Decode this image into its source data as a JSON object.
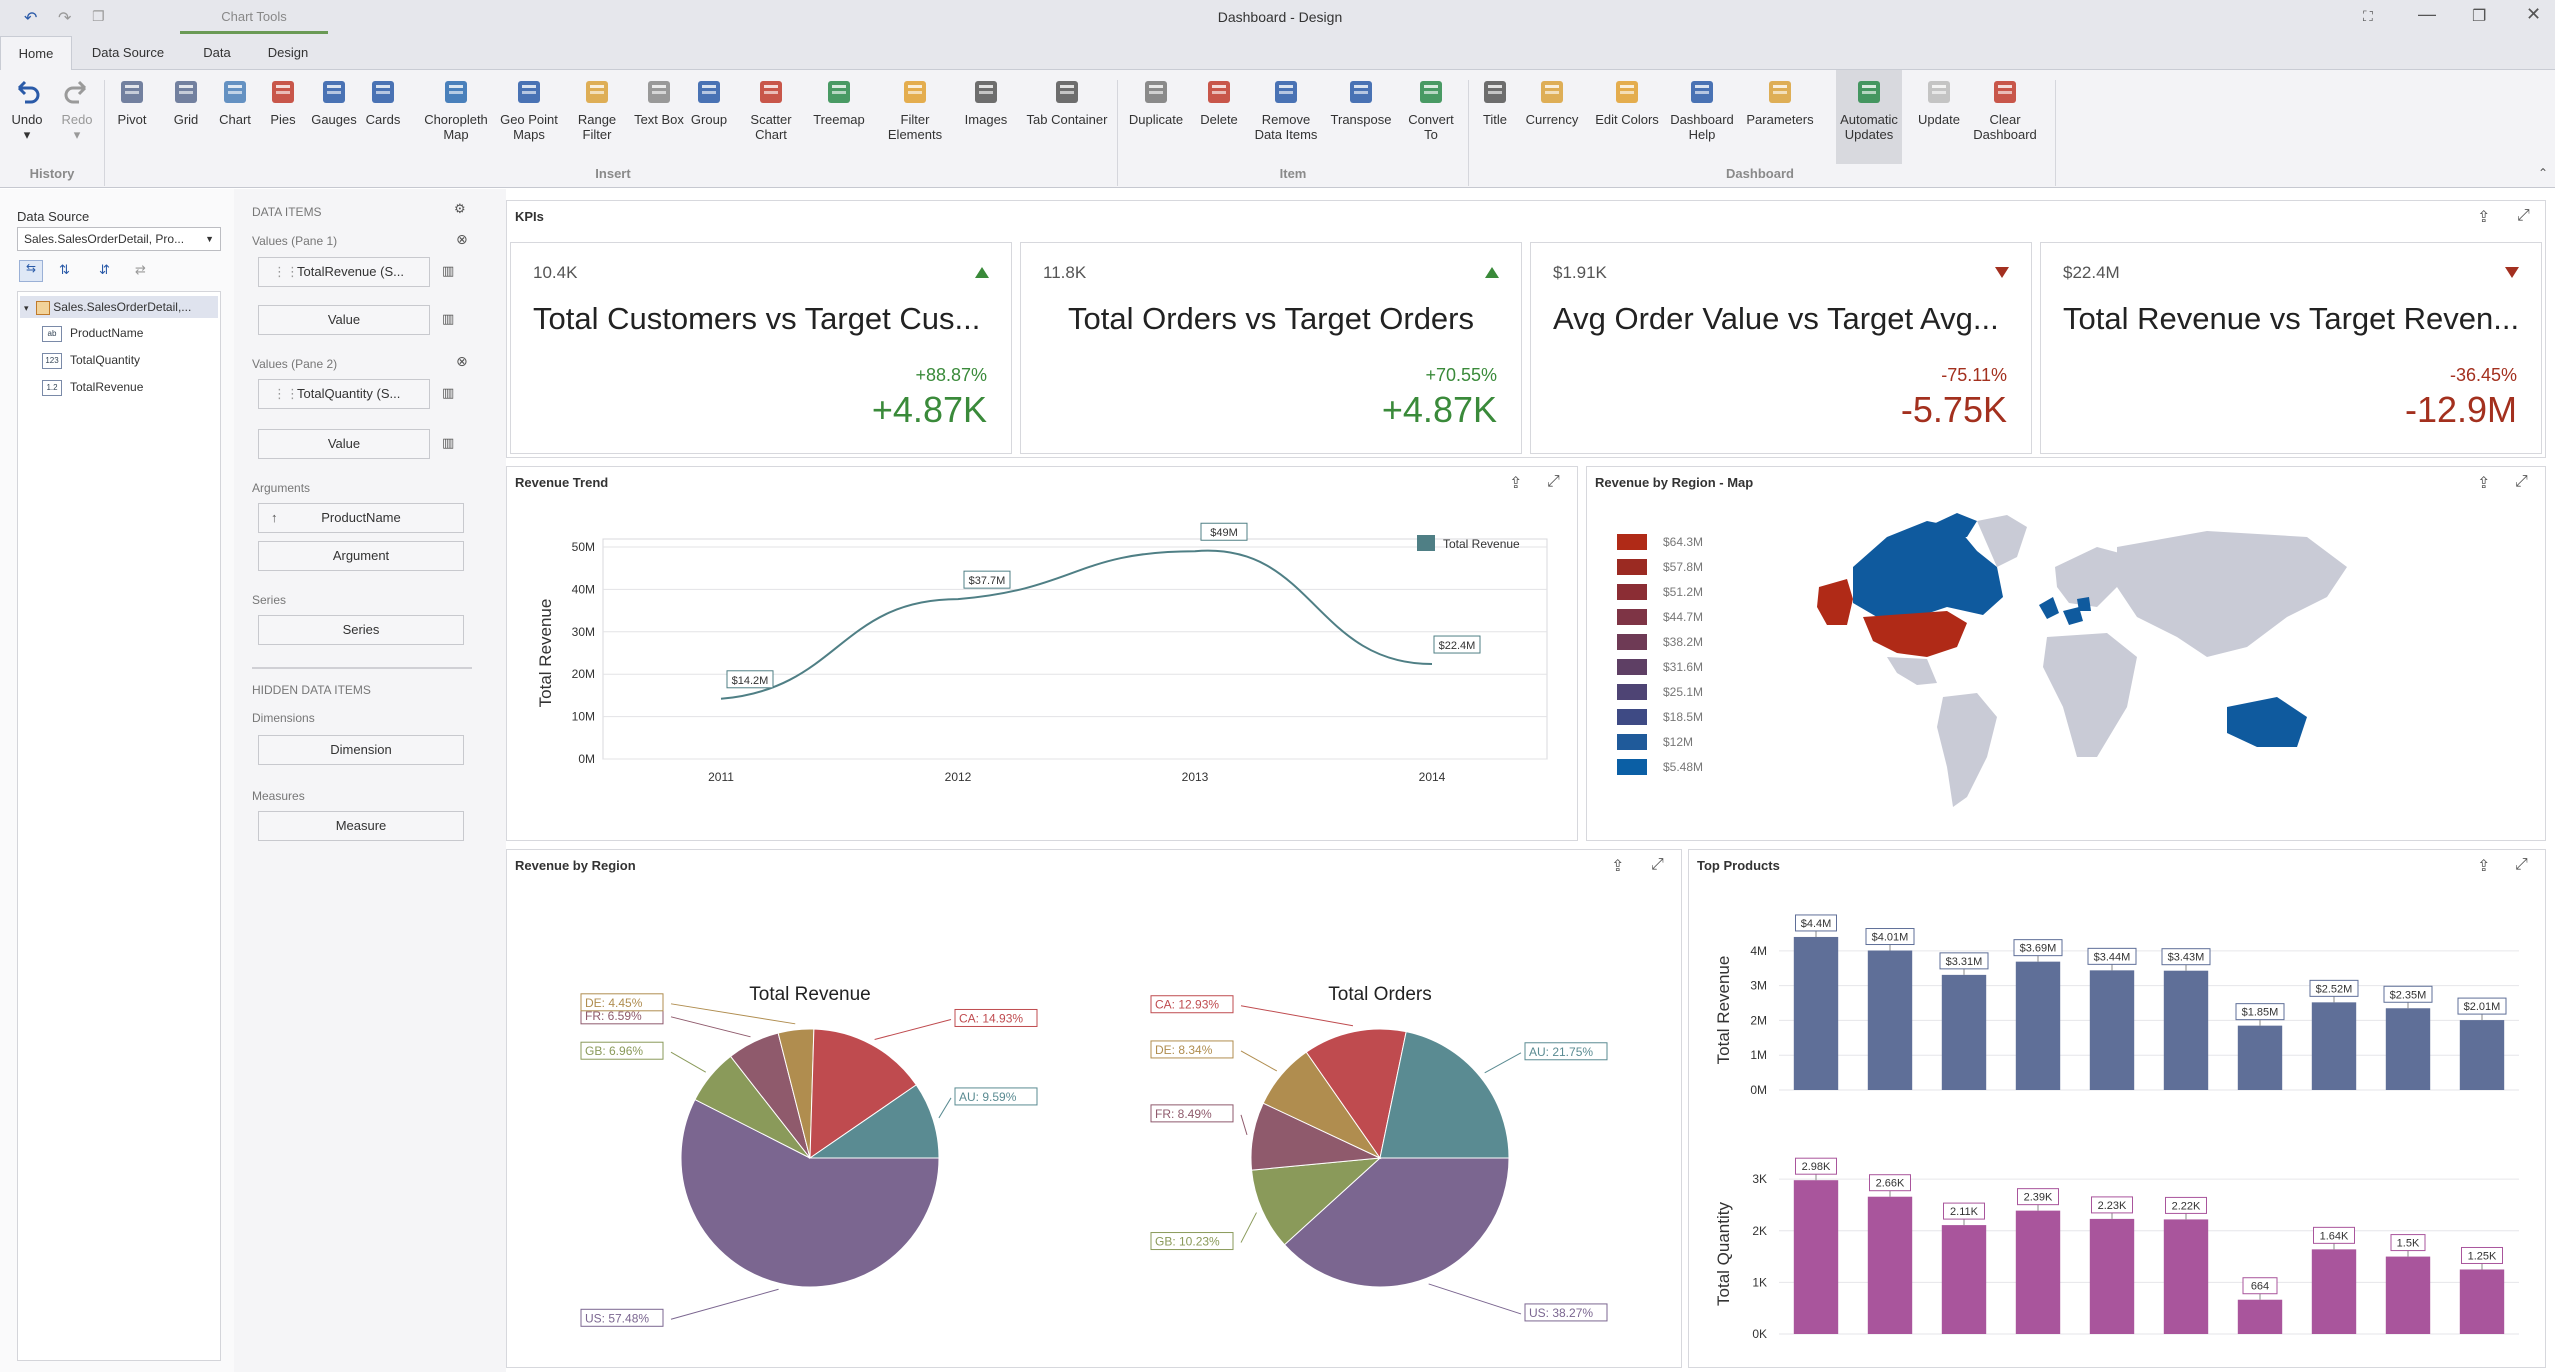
{
  "window": {
    "title": "Dashboard - Design",
    "chart_tools": "Chart Tools"
  },
  "tabs": [
    "Home",
    "Data Source",
    "Data",
    "Design"
  ],
  "ribbon": {
    "undo": "Undo",
    "redo": "Redo",
    "history": "History",
    "insert": [
      "Pivot",
      "Grid",
      "Chart",
      "Pies",
      "Gauges",
      "Cards",
      "Choropleth Map",
      "Geo Point Maps",
      "Range Filter",
      "Text Box",
      "Group",
      "Scatter Chart",
      "Treemap",
      "Filter Elements",
      "Images",
      "Tab Container"
    ],
    "insert_label": "Insert",
    "item": [
      "Duplicate",
      "Delete",
      "Remove Data Items",
      "Transpose",
      "Convert To"
    ],
    "item_label": "Item",
    "dashboard": [
      "Title",
      "Currency",
      "Edit Colors",
      "Dashboard Help",
      "Parameters",
      "Automatic Updates",
      "Update",
      "Clear Dashboard"
    ],
    "dashboard_label": "Dashboard"
  },
  "datasource": {
    "label": "Data Source",
    "value": "Sales.SalesOrderDetail, Pro...",
    "root": "Sales.SalesOrderDetail,...",
    "fields": [
      "ProductName",
      "TotalQuantity",
      "TotalRevenue"
    ],
    "field_types": [
      "ab",
      "123",
      "1.2"
    ]
  },
  "dataitems": {
    "header": "DATA ITEMS",
    "pane1": "Values (Pane 1)",
    "item1": "TotalRevenue (S...",
    "value": "Value",
    "pane2": "Values (Pane 2)",
    "item2": "TotalQuantity (S...",
    "arguments": "Arguments",
    "arg_item": "ProductName",
    "argument": "Argument",
    "series": "Series",
    "series_btn": "Series",
    "hidden": "HIDDEN DATA ITEMS",
    "dimensions": "Dimensions",
    "dimension": "Dimension",
    "measures": "Measures",
    "measure": "Measure"
  },
  "kpis": {
    "title": "KPIs",
    "cards": [
      {
        "value": "10.4K",
        "title": "Total Customers vs Target Cus...",
        "pct": "+88.87%",
        "delta": "+4.87K",
        "trend": "up"
      },
      {
        "value": "11.8K",
        "title": "Total Orders vs Target Orders",
        "pct": "+70.55%",
        "delta": "+4.87K",
        "trend": "up"
      },
      {
        "value": "$1.91K",
        "title": "Avg Order Value vs Target Avg...",
        "pct": "-75.11%",
        "delta": "-5.75K",
        "trend": "down"
      },
      {
        "value": "$22.4M",
        "title": "Total Revenue vs Target Reven...",
        "pct": "-36.45%",
        "delta": "-12.9M",
        "trend": "down"
      }
    ]
  },
  "panels": {
    "trend": "Revenue Trend",
    "map": "Revenue by Region - Map",
    "region": "Revenue by Region",
    "products": "Top Products"
  },
  "map_legend": {
    "items": [
      "$64.3M",
      "$57.8M",
      "$51.2M",
      "$44.7M",
      "$38.2M",
      "$31.6M",
      "$25.1M",
      "$18.5M",
      "$12M",
      "$5.48M"
    ],
    "colors": [
      "#b02a17",
      "#9b2a22",
      "#8b2d34",
      "#7e3445",
      "#6e3a55",
      "#5e3f64",
      "#4e4474",
      "#3e4a84",
      "#1f5a9a",
      "#0b5fa5"
    ]
  },
  "chart_data": [
    {
      "type": "line",
      "title": "",
      "x": [
        "2011",
        "2012",
        "2013",
        "2014"
      ],
      "series": [
        {
          "name": "Total Revenue",
          "values": [
            14.2,
            37.7,
            49,
            22.4
          ]
        }
      ],
      "labels": [
        "$14.2M",
        "$37.7M",
        "$49M",
        "$22.4M"
      ],
      "ylabel": "Total Revenue",
      "yticks": [
        "0M",
        "10M",
        "20M",
        "30M",
        "40M",
        "50M"
      ],
      "ylim": [
        0,
        50
      ],
      "legend": "top-right",
      "color": "#4f7f85"
    },
    {
      "type": "pie",
      "title": "Total Revenue",
      "slices": [
        {
          "label": "US: 57.48%",
          "value": 57.48,
          "color": "#7b6690"
        },
        {
          "label": "GB: 6.96%",
          "value": 6.96,
          "color": "#8a9a5a"
        },
        {
          "label": "FR: 6.59%",
          "value": 6.59,
          "color": "#8f5a6c"
        },
        {
          "label": "DE: 4.45%",
          "value": 4.45,
          "color": "#b08d4f"
        },
        {
          "label": "CA: 14.93%",
          "value": 14.93,
          "color": "#bf4b4f"
        },
        {
          "label": "AU: 9.59%",
          "value": 9.59,
          "color": "#5a8b92"
        }
      ]
    },
    {
      "type": "pie",
      "title": "Total Orders",
      "slices": [
        {
          "label": "US: 38.27%",
          "value": 38.27,
          "color": "#7b6690"
        },
        {
          "label": "GB: 10.23%",
          "value": 10.23,
          "color": "#8a9a5a"
        },
        {
          "label": "FR: 8.49%",
          "value": 8.49,
          "color": "#8f5a6c"
        },
        {
          "label": "DE: 8.34%",
          "value": 8.34,
          "color": "#b08d4f"
        },
        {
          "label": "CA: 12.93%",
          "value": 12.93,
          "color": "#bf4b4f"
        },
        {
          "label": "AU: 21.75%",
          "value": 21.75,
          "color": "#5a8b92"
        }
      ]
    },
    {
      "type": "bar",
      "title": "",
      "ylabel": "Total Revenue",
      "values": [
        4.4,
        4.01,
        3.31,
        3.69,
        3.44,
        3.43,
        1.85,
        2.52,
        2.35,
        2.01
      ],
      "labels": [
        "$4.4M",
        "$4.01M",
        "$3.31M",
        "$3.69M",
        "$3.44M",
        "$3.43M",
        "$1.85M",
        "$2.52M",
        "$2.35M",
        "$2.01M"
      ],
      "yticks": [
        "0M",
        "1M",
        "2M",
        "3M",
        "4M"
      ],
      "ylim": [
        0,
        4.6
      ],
      "color": "#5f6f98"
    },
    {
      "type": "bar",
      "title": "",
      "ylabel": "Total Quantity",
      "values": [
        2980,
        2660,
        2110,
        2390,
        2230,
        2220,
        664,
        1640,
        1500,
        1250
      ],
      "labels": [
        "2.98K",
        "2.66K",
        "2.11K",
        "2.39K",
        "2.23K",
        "2.22K",
        "664",
        "1.64K",
        "1.5K",
        "1.25K"
      ],
      "yticks": [
        "0K",
        "1K",
        "2K",
        "3K"
      ],
      "ylim": [
        0,
        3100
      ],
      "color": "#a9559c"
    }
  ]
}
